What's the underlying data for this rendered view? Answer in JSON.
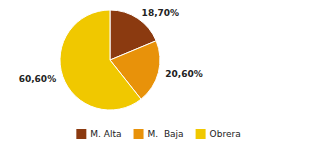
{
  "chart_data": {
    "type": "pie",
    "categories": [
      "M. Alta",
      "M.  Baja",
      "Obrera"
    ],
    "values": [
      18.7,
      20.6,
      60.6
    ],
    "value_labels": [
      "18,70%",
      "20,60%",
      "60,60%"
    ],
    "colors": [
      "#8B3A10",
      "#E8920A",
      "#F0C800"
    ],
    "data_labels": true,
    "legend": "bottom"
  }
}
